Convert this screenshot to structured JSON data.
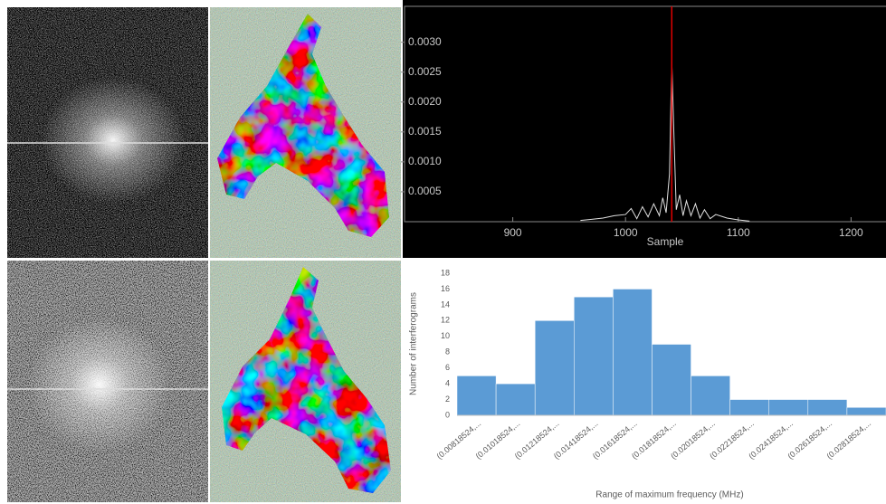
{
  "chart_data": [
    {
      "type": "line",
      "xlabel": "Sample",
      "xlim": [
        804,
        1231
      ],
      "xticks": [
        900,
        1000,
        1100,
        1200
      ],
      "ylim": [
        0,
        0.0036
      ],
      "yticks": [
        0.0005,
        {
          "value": 0.001,
          "label": "0.0010"
        },
        0.0015,
        {
          "value": 0.002,
          "label": "0.0020"
        },
        0.0025,
        {
          "value": 0.003,
          "label": "0.0030"
        }
      ],
      "series": [
        {
          "color": "#e0e0e0",
          "x": [
            960,
            970,
            980,
            990,
            1000,
            1005,
            1010,
            1015,
            1020,
            1025,
            1030,
            1033,
            1036,
            1039,
            1041,
            1043,
            1045,
            1048,
            1051,
            1054,
            1058,
            1062,
            1066,
            1070,
            1075,
            1080,
            1090,
            1100,
            1110
          ],
          "values": [
            2e-05,
            4e-05,
            6e-05,
            0.0001,
            0.00012,
            0.00022,
            5e-05,
            0.00025,
            8e-05,
            0.0003,
            0.0001,
            0.0004,
            0.00015,
            0.0008,
            0.0027,
            0.0014,
            0.0002,
            0.00045,
            0.0001,
            0.00035,
            0.0001,
            0.0003,
            6e-05,
            0.0002,
            5e-05,
            0.00012,
            6e-05,
            3e-05,
            1e-05
          ]
        },
        {
          "color": "#e00000",
          "x": [
            1041,
            1041
          ],
          "values": [
            0,
            0.0036
          ]
        }
      ]
    },
    {
      "type": "bar",
      "xlabel": "Range of maximum frequency (MHz)",
      "ylabel": "Number of interferograms",
      "categories": [
        "(0.00818524,...",
        "(0.01018524,...",
        "(0.01218524,...",
        "(0.01418524,...",
        "(0.01618524,...",
        "(0.01818524,...",
        "(0.02018524,...",
        "(0.02218524,...",
        "(0.02418524,...",
        "(0.02618524,...",
        "(0.02818524,..."
      ],
      "values": [
        5,
        4,
        12,
        15,
        16,
        9,
        5,
        2,
        2,
        2,
        1
      ],
      "color": "#5b9bd5",
      "ylim": [
        0,
        18
      ],
      "yticks": [
        0,
        2,
        4,
        6,
        8,
        10,
        12,
        14,
        16,
        18
      ],
      "grid": false
    }
  ]
}
